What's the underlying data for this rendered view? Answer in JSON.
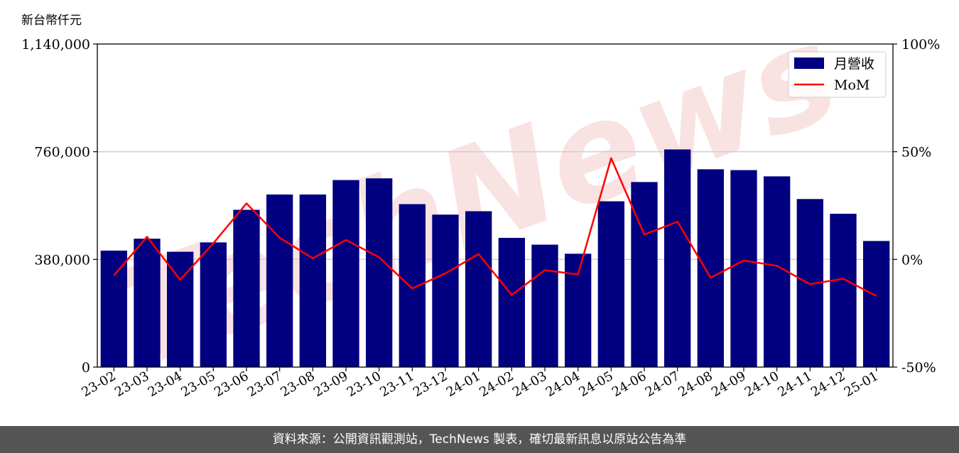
{
  "unit_label": "新台幣仟元",
  "footer_text": "資料來源：公開資訊觀測站，TechNews 製表，確切最新訊息以原站公告為準",
  "watermark_text": "TechNews",
  "colors": {
    "bar": "#000080",
    "line": "#ff0000",
    "grid": "#cccccc",
    "footer_bg": "#555555",
    "watermark": "#f4c6c6"
  },
  "chart_data": {
    "type": "bar",
    "categories": [
      "23-02",
      "23-03",
      "23-04",
      "23-05",
      "23-06",
      "23-07",
      "23-08",
      "23-09",
      "23-10",
      "23-11",
      "23-12",
      "24-01",
      "24-02",
      "24-03",
      "24-04",
      "24-05",
      "24-06",
      "24-07",
      "24-08",
      "24-09",
      "24-10",
      "24-11",
      "24-12",
      "25-01"
    ],
    "series": [
      {
        "name": "月營收",
        "type": "bar",
        "axis": "left",
        "values": [
          411000,
          453000,
          407000,
          440000,
          555000,
          609000,
          609000,
          660000,
          666000,
          575000,
          538000,
          550000,
          456000,
          432000,
          400000,
          585000,
          653000,
          768000,
          698000,
          695000,
          673000,
          593000,
          541000,
          445000
        ]
      },
      {
        "name": "MoM",
        "type": "line",
        "axis": "right",
        "values": [
          -7.5,
          10.5,
          -9.5,
          7.5,
          26.0,
          10.0,
          0.5,
          9.0,
          1.0,
          -13.5,
          -6.5,
          2.5,
          -16.5,
          -5.0,
          -7.0,
          47.0,
          11.5,
          17.5,
          -8.5,
          -0.5,
          -3.0,
          -11.5,
          -9.0,
          -17.0
        ]
      }
    ],
    "y_left": {
      "ylim": [
        0,
        1140000
      ],
      "ticks": [
        "0",
        "380,000",
        "760,000",
        "1,140,000"
      ],
      "tick_values": [
        0,
        380000,
        760000,
        1140000
      ]
    },
    "y_right": {
      "ylim": [
        -50,
        100
      ],
      "ticks": [
        "-50%",
        "0%",
        "50%",
        "100%"
      ],
      "tick_values": [
        -50,
        0,
        50,
        100
      ]
    },
    "grid": "horizontal",
    "legend": {
      "position": "top-right",
      "entries": [
        "月營收",
        "MoM"
      ]
    }
  }
}
